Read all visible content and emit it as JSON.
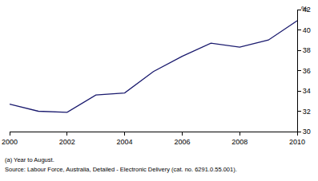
{
  "chart_data": {
    "type": "line",
    "ylabel": "%",
    "x": [
      2000,
      2001,
      2002,
      2003,
      2004,
      2005,
      2006,
      2007,
      2008,
      2009,
      2010
    ],
    "values": [
      32.7,
      32.0,
      31.9,
      33.6,
      33.8,
      35.9,
      37.4,
      38.7,
      38.3,
      39.0,
      40.9
    ],
    "color": "#1a1a6e",
    "xlim": [
      2000,
      2010
    ],
    "xticks": [
      2000,
      2002,
      2004,
      2006,
      2008,
      2010
    ],
    "ylim": [
      30,
      42
    ],
    "yticks": [
      30,
      32,
      34,
      36,
      38,
      40,
      42
    ],
    "grid": false,
    "notes": [
      "(a) Year to August.",
      "Source: Labour Force, Australia, Detailed - Electronic Delivery (cat. no. 6291.0.55.001)."
    ]
  }
}
